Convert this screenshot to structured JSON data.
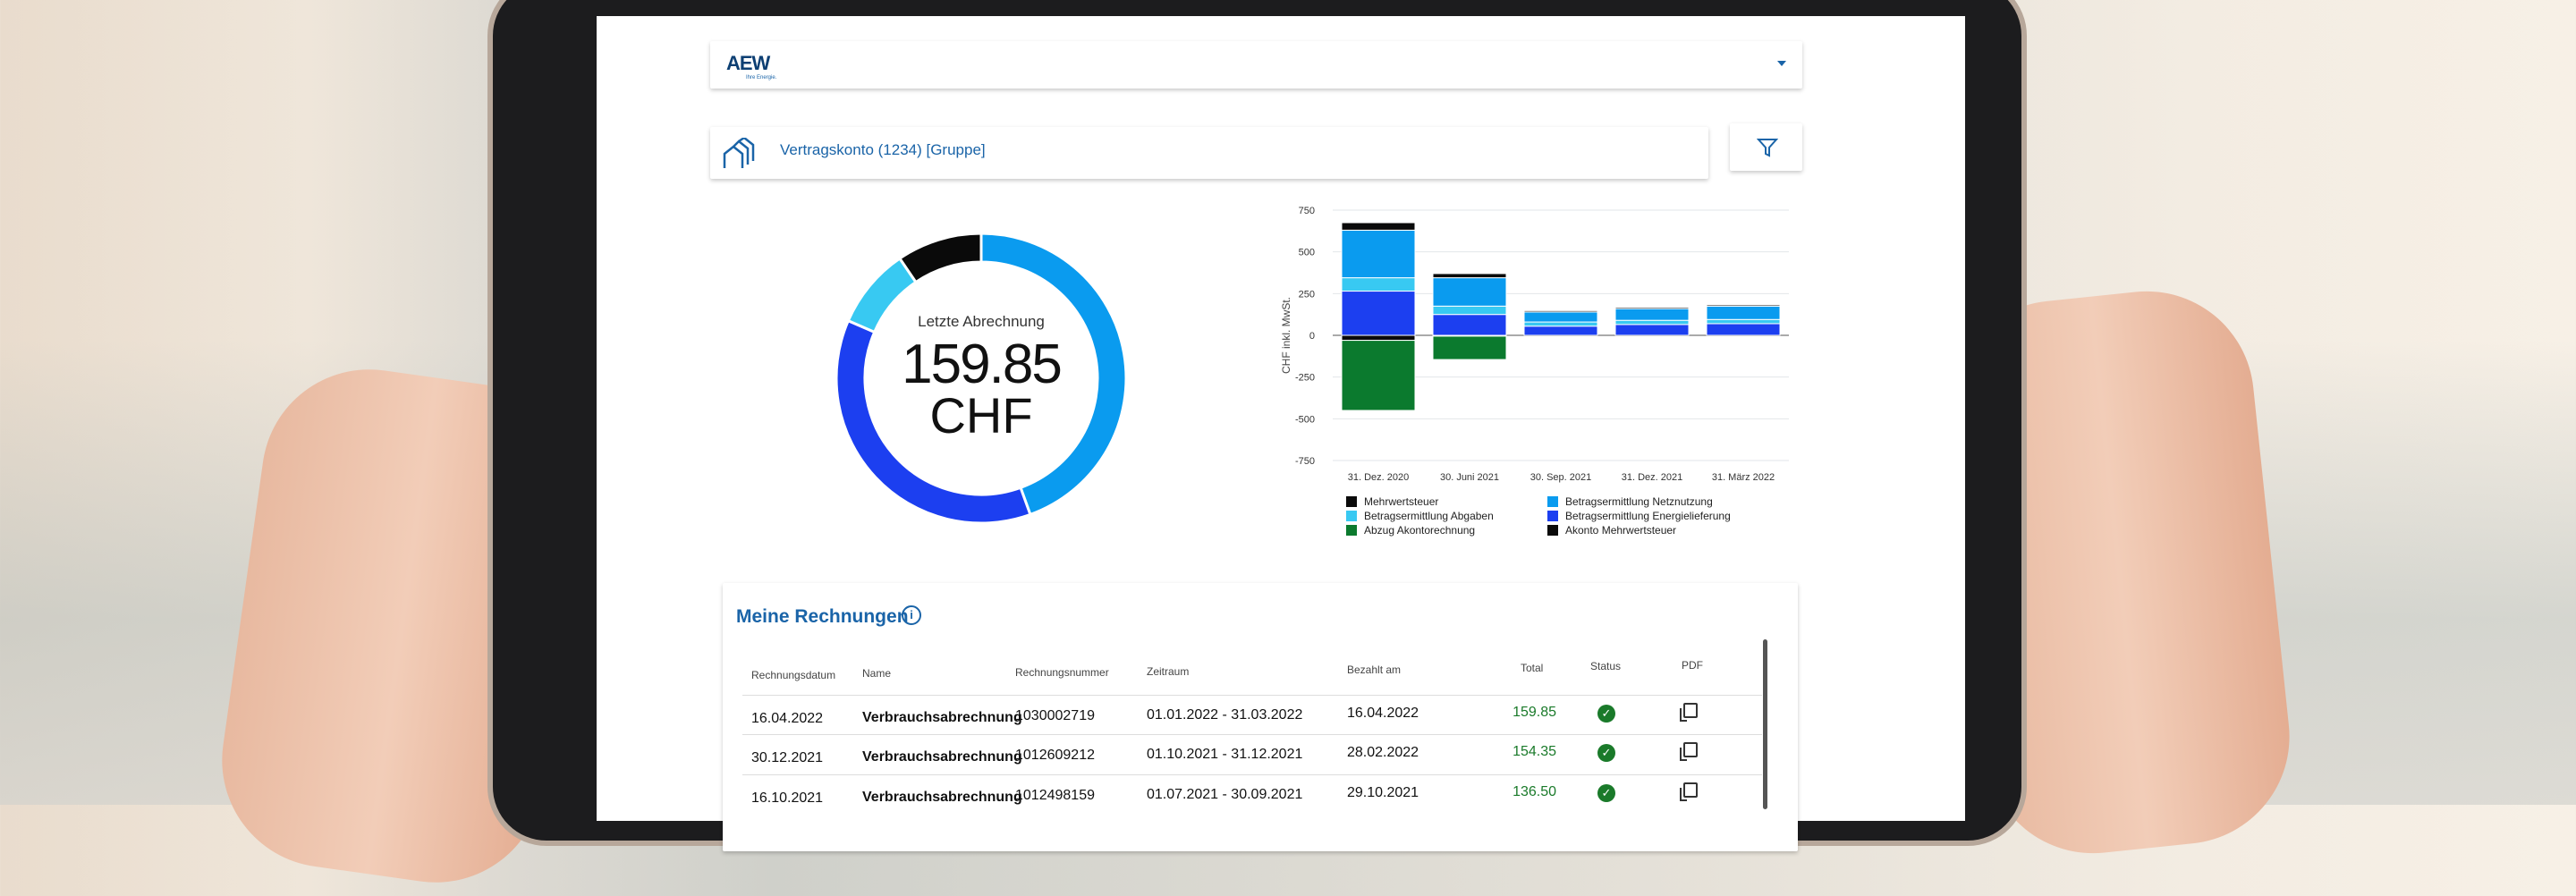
{
  "header": {
    "logo_text": "AEW",
    "logo_tagline": "Ihre Energie."
  },
  "account": {
    "label": "Vertragskonto (1234) [Gruppe]",
    "icon": "houses-icon",
    "filter_icon": "filter-icon"
  },
  "donut": {
    "title": "Letzte Abrechnung",
    "amount": "159.85",
    "currency": "CHF",
    "segments": [
      {
        "color": "#0a9bef",
        "fraction": 0.445
      },
      {
        "color": "#1c3ff0",
        "fraction": 0.37
      },
      {
        "color": "#38c9f2",
        "fraction": 0.09
      },
      {
        "color": "#0a0a0a",
        "fraction": 0.095
      }
    ]
  },
  "chart_data": {
    "type": "bar",
    "stacked": true,
    "ylabel": "CHF inkl. MwSt.",
    "ylim": [
      -750,
      750
    ],
    "yticks": [
      "750",
      "500",
      "250",
      "0",
      "-250",
      "-500",
      "-750"
    ],
    "ytick_values": [
      750,
      500,
      250,
      0,
      -250,
      -500,
      -750
    ],
    "grid": true,
    "legend_position": "bottom",
    "categories": [
      "31. Dez. 2020",
      "30. Juni 2021",
      "30. Sep. 2021",
      "31. Dez. 2021",
      "31. März 2022"
    ],
    "series": [
      {
        "name": "Betragsermittlung Energielieferung",
        "color": "#1c3ff0",
        "values": [
          265,
          125,
          55,
          65,
          70
        ]
      },
      {
        "name": "Betragsermittlung Abgaben",
        "color": "#38c9f2",
        "values": [
          80,
          50,
          25,
          25,
          25
        ]
      },
      {
        "name": "Betragsermittlung Netznutzung",
        "color": "#0a9bef",
        "values": [
          285,
          170,
          60,
          70,
          80
        ]
      },
      {
        "name": "Mehrwertsteuer",
        "color": "#0a0a0a",
        "values": [
          45,
          25,
          8,
          8,
          8
        ]
      },
      {
        "name": "Akonto Mehrwertsteuer",
        "color": "#0a0a0a",
        "values": [
          -30,
          -5,
          0,
          0,
          0
        ]
      },
      {
        "name": "Abzug Akontorechnung",
        "color": "#0b7a2e",
        "values": [
          -420,
          -140,
          0,
          0,
          0
        ]
      }
    ],
    "legend": [
      {
        "name": "Mehrwertsteuer",
        "color": "#0a0a0a"
      },
      {
        "name": "Betragsermittlung Abgaben",
        "color": "#38c9f2"
      },
      {
        "name": "Abzug Akontorechnung",
        "color": "#0b7a2e"
      },
      {
        "name": "Betragsermittlung Netznutzung",
        "color": "#0a9bef"
      },
      {
        "name": "Betragsermittlung Energielieferung",
        "color": "#1c3ff0"
      },
      {
        "name": "Akonto Mehrwertsteuer",
        "color": "#0a0a0a"
      }
    ]
  },
  "invoices": {
    "title": "Meine Rechnungen",
    "columns": [
      "Rechnungsdatum",
      "Name",
      "Rechnungsnummer",
      "Zeitraum",
      "Bezahlt am",
      "Total",
      "Status",
      "PDF"
    ],
    "rows": [
      {
        "date": "16.04.2022",
        "name": "Verbrauchsabrechnung",
        "number": "1030002719",
        "period": "01.01.2022 - 31.03.2022",
        "paid": "16.04.2022",
        "total": "159.85",
        "status": "paid"
      },
      {
        "date": "30.12.2021",
        "name": "Verbrauchsabrechnung",
        "number": "1012609212",
        "period": "01.10.2021 - 31.12.2021",
        "paid": "28.02.2022",
        "total": "154.35",
        "status": "paid"
      },
      {
        "date": "16.10.2021",
        "name": "Verbrauchsabrechnung",
        "number": "1012498159",
        "period": "01.07.2021 - 30.09.2021",
        "paid": "29.10.2021",
        "total": "136.50",
        "status": "paid"
      }
    ],
    "total_color": "#1a7a2a"
  }
}
